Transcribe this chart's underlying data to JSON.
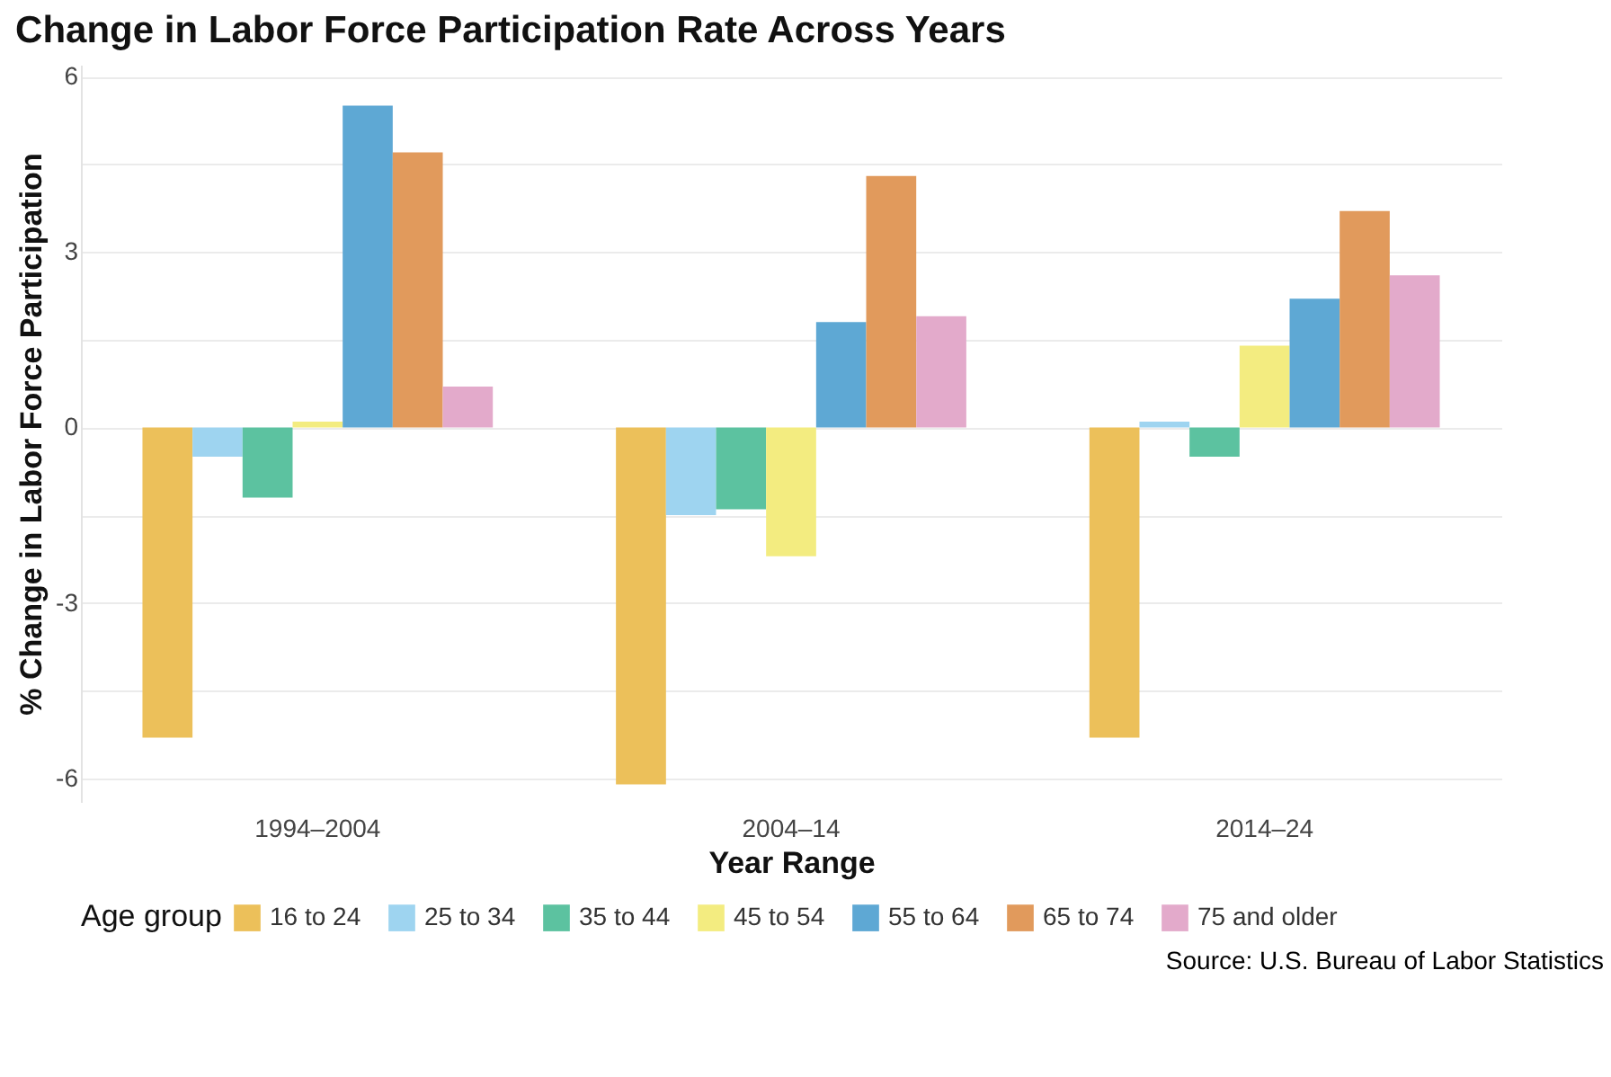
{
  "chart_data": {
    "type": "bar",
    "title": "Change in Labor Force Participation Rate Across Years",
    "xlabel": "Year Range",
    "ylabel": "% Change in Labor Force Participation",
    "legend_title": "Age group",
    "categories": [
      "1994–2004",
      "2004–14",
      "2014–24"
    ],
    "series": [
      {
        "name": "16 to 24",
        "color": "#ecc05a",
        "values": [
          -5.3,
          -6.1,
          -5.3
        ]
      },
      {
        "name": "25 to 34",
        "color": "#9ed4f0",
        "values": [
          -0.5,
          -1.5,
          0.1
        ]
      },
      {
        "name": "35 to 44",
        "color": "#5cc2a0",
        "values": [
          -1.2,
          -1.4,
          -0.5
        ]
      },
      {
        "name": "45 to 54",
        "color": "#f3ec80",
        "values": [
          0.1,
          -2.2,
          1.4
        ]
      },
      {
        "name": "55 to 64",
        "color": "#5ea8d4",
        "values": [
          5.5,
          1.8,
          2.2
        ]
      },
      {
        "name": "65 to 74",
        "color": "#e19a5c",
        "values": [
          4.7,
          4.3,
          3.7
        ]
      },
      {
        "name": "75 and older",
        "color": "#e3aacb",
        "values": [
          0.7,
          1.9,
          2.6
        ]
      }
    ],
    "ylim": [
      -6.4,
      6.2
    ],
    "yticks": [
      -6,
      {
        "value": -4.5,
        "label": null
      },
      -3,
      {
        "value": -1.5,
        "label": null
      },
      0,
      {
        "value": 1.5,
        "label": null
      },
      3,
      {
        "value": 4.5,
        "label": null
      },
      6
    ],
    "grid": true,
    "legend": "bottom",
    "annotations": [
      "Source: U.S. Bureau of Labor Statistics"
    ]
  }
}
